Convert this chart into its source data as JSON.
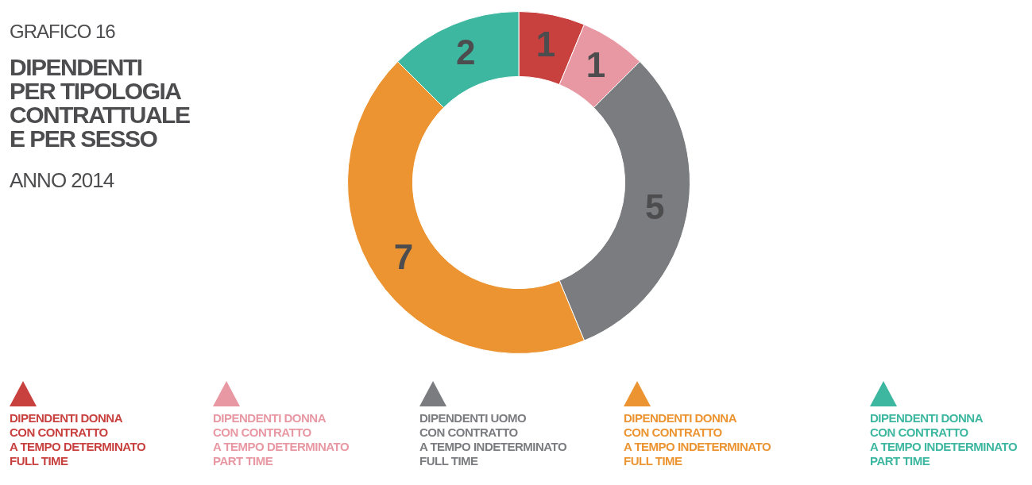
{
  "chart_data": {
    "type": "donut",
    "title": "DIPENDENTI\nPER TIPOLOGIA\nCONTRATTUALE\nE PER SESSO",
    "subtitle": "ANNO 2014",
    "annotations": [
      "GRAFICO 16"
    ],
    "categories": [
      "DIPENDENTI DONNA\nCON CONTRATTO\nA TEMPO DETERMINATO\nFULL TIME",
      "DIPENDENTI DONNA\nCON CONTRATTO\nA TEMPO DETERMINATO\nPART TIME",
      "DIPENDENTI UOMO\nCON CONTRATTO\nA TEMPO INDETERMINATO\nFULL TIME",
      "DIPENDENTI DONNA\nCON CONTRATTO\nA TEMPO INDETERMINATO\nFULL TIME",
      "DIPENDENTI DONNA\nCON CONTRATTO\nA TEMPO INDETERMINATO\nPART TIME"
    ],
    "values": [
      1,
      1,
      5,
      7,
      2
    ],
    "colors": [
      "#c8413f",
      "#e898a3",
      "#7b7c80",
      "#ec9431",
      "#3db7a0"
    ],
    "data_labels": true,
    "legend": "bottom"
  }
}
